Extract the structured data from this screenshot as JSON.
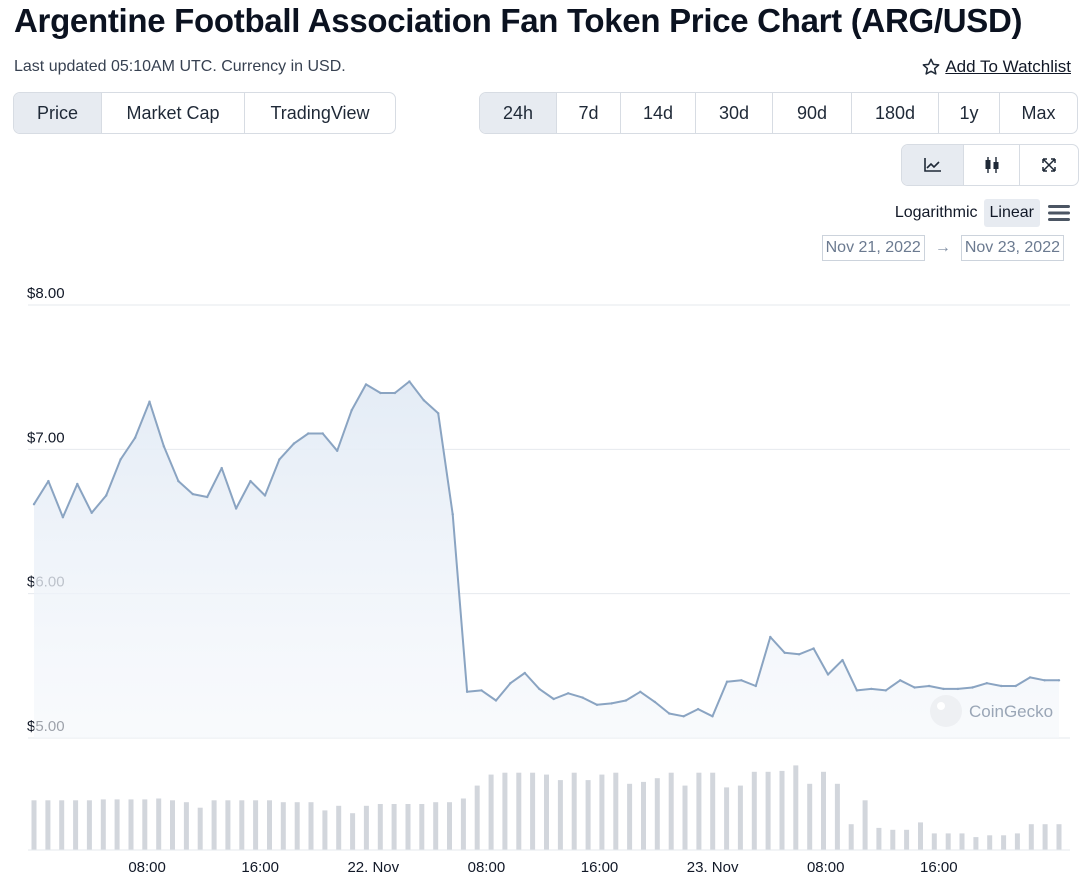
{
  "header": {
    "title": "Argentine Football Association Fan Token Price Chart (ARG/USD)",
    "subtitle": "Last updated 05:10AM UTC. Currency in USD.",
    "watchlist_label": "Add To Watchlist"
  },
  "type_tabs": [
    {
      "label": "Price",
      "active": true
    },
    {
      "label": "Market Cap",
      "active": false
    },
    {
      "label": "TradingView",
      "active": false
    }
  ],
  "range_tabs": [
    {
      "label": "24h",
      "active": true
    },
    {
      "label": "7d",
      "active": false
    },
    {
      "label": "14d",
      "active": false
    },
    {
      "label": "30d",
      "active": false
    },
    {
      "label": "90d",
      "active": false
    },
    {
      "label": "180d",
      "active": false
    },
    {
      "label": "1y",
      "active": false
    },
    {
      "label": "Max",
      "active": false
    }
  ],
  "view_tabs": [
    {
      "icon": "line-chart-icon",
      "active": true
    },
    {
      "icon": "candlestick-icon",
      "active": false
    },
    {
      "icon": "expand-icon",
      "active": false
    }
  ],
  "scale": {
    "log_label": "Logarithmic",
    "linear_label": "Linear",
    "active": "linear"
  },
  "date_range": {
    "from": "Nov 21, 2022",
    "to": "Nov 23, 2022"
  },
  "watermark": "CoinGecko",
  "colors": {
    "line": "#8aa4c2",
    "fill_top": "#e4ecf6",
    "volume": "#d2d6dc",
    "accent": "#e7ebf1"
  },
  "chart_data": {
    "type": "area",
    "series": [
      {
        "values": [
          6.62,
          6.78,
          6.53,
          6.76,
          6.56,
          6.68,
          6.93,
          7.08,
          7.33,
          7.02,
          6.78,
          6.69,
          6.67,
          6.87,
          6.59,
          6.78,
          6.68,
          6.93,
          7.04,
          7.11,
          7.11,
          6.99,
          7.27,
          7.45,
          7.39,
          7.39,
          7.47,
          7.34,
          7.25,
          6.55,
          5.32,
          5.33,
          5.26,
          5.38,
          5.45,
          5.34,
          5.27,
          5.31,
          5.28,
          5.23,
          5.24,
          5.26,
          5.32,
          5.25,
          5.17,
          5.15,
          5.2,
          5.15,
          5.39,
          5.4,
          5.36,
          5.7,
          5.59,
          5.58,
          5.62,
          5.44,
          5.54,
          5.33,
          5.34,
          5.33,
          5.4,
          5.35,
          5.36,
          5.34,
          5.34,
          5.35,
          5.38,
          5.36,
          5.36,
          5.42,
          5.4,
          5.4
        ]
      }
    ],
    "volume_relative": [
      0.54,
      0.54,
      0.54,
      0.54,
      0.54,
      0.55,
      0.55,
      0.55,
      0.55,
      0.56,
      0.54,
      0.52,
      0.46,
      0.54,
      0.54,
      0.54,
      0.54,
      0.54,
      0.52,
      0.52,
      0.52,
      0.43,
      0.48,
      0.4,
      0.48,
      0.5,
      0.5,
      0.5,
      0.5,
      0.52,
      0.52,
      0.56,
      0.7,
      0.82,
      0.84,
      0.84,
      0.84,
      0.82,
      0.76,
      0.84,
      0.76,
      0.82,
      0.84,
      0.72,
      0.74,
      0.78,
      0.84,
      0.7,
      0.84,
      0.84,
      0.68,
      0.7,
      0.85,
      0.85,
      0.86,
      0.92,
      0.72,
      0.85,
      0.72,
      0.28,
      0.54,
      0.24,
      0.22,
      0.22,
      0.3,
      0.18,
      0.18,
      0.18,
      0.14,
      0.16,
      0.16,
      0.18,
      0.28,
      0.28,
      0.28
    ],
    "y_ticks": [
      "$8.00",
      "$7.00",
      "$6.00",
      "$5.00"
    ],
    "y_tick_values": [
      8,
      7,
      6,
      5
    ],
    "ylim": [
      5.0,
      8.0
    ],
    "x_ticks": [
      "08:00",
      "16:00",
      "22. Nov",
      "08:00",
      "16:00",
      "23. Nov",
      "08:00",
      "16:00"
    ],
    "x_tick_hours": [
      8,
      16,
      24,
      32,
      40,
      48,
      56,
      64
    ],
    "x_range_hours": [
      0,
      72.5
    ],
    "grid": true
  }
}
